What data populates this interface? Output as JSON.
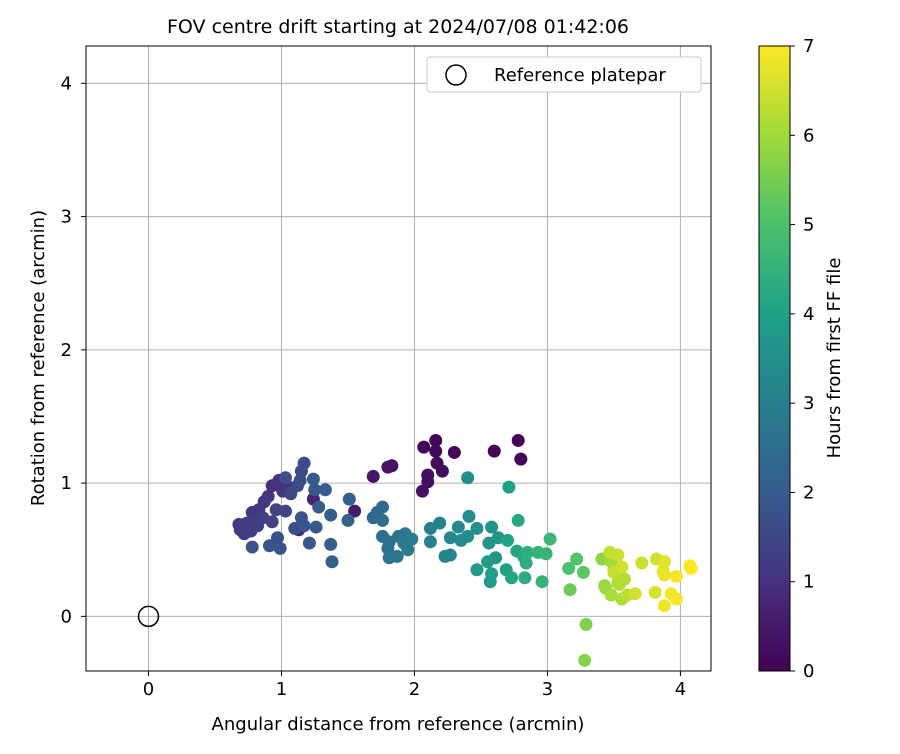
{
  "chart_data": {
    "type": "scatter",
    "title": "FOV centre drift starting at 2024/07/08 01:42:06",
    "xlabel": "Angular distance from reference (arcmin)",
    "ylabel": "Rotation from reference (arcmin)",
    "xlim": [
      -0.47,
      4.23
    ],
    "ylim": [
      -0.41,
      4.28
    ],
    "xticks": [
      0,
      1,
      2,
      3,
      4
    ],
    "yticks": [
      0,
      1,
      2,
      3,
      4
    ],
    "grid": true,
    "legend": {
      "placement": "top-right",
      "entries": [
        "Reference platepar"
      ]
    },
    "reference_point": {
      "x": 0,
      "y": 0,
      "label": "Reference platepar"
    },
    "colorbar": {
      "label": "Hours from first FF file",
      "colormap": "viridis",
      "range": [
        0,
        7
      ],
      "ticks": [
        0,
        1,
        2,
        3,
        4,
        5,
        6,
        7
      ],
      "stops": [
        "#440154",
        "#46327e",
        "#365c8d",
        "#277f8e",
        "#1fa187",
        "#4ac16d",
        "#a0da39",
        "#fde725"
      ]
    },
    "series": [
      {
        "color_by": "hours",
        "points": [
          {
            "x": 2.78,
            "y": 1.32,
            "h": 0.05
          },
          {
            "x": 2.8,
            "y": 1.18,
            "h": 0.06
          },
          {
            "x": 2.6,
            "y": 1.24,
            "h": 0.08
          },
          {
            "x": 2.16,
            "y": 1.32,
            "h": 0.1
          },
          {
            "x": 2.3,
            "y": 1.23,
            "h": 0.12
          },
          {
            "x": 2.07,
            "y": 1.27,
            "h": 0.15
          },
          {
            "x": 2.16,
            "y": 1.24,
            "h": 0.18
          },
          {
            "x": 2.17,
            "y": 1.15,
            "h": 0.2
          },
          {
            "x": 2.21,
            "y": 1.09,
            "h": 0.22
          },
          {
            "x": 2.1,
            "y": 1.06,
            "h": 0.25
          },
          {
            "x": 2.1,
            "y": 1.01,
            "h": 0.28
          },
          {
            "x": 2.06,
            "y": 0.94,
            "h": 0.3
          },
          {
            "x": 1.83,
            "y": 1.13,
            "h": 0.35
          },
          {
            "x": 1.8,
            "y": 1.12,
            "h": 0.38
          },
          {
            "x": 1.69,
            "y": 1.05,
            "h": 0.45
          },
          {
            "x": 1.55,
            "y": 0.79,
            "h": 0.55
          },
          {
            "x": 1.24,
            "y": 0.88,
            "h": 0.7
          },
          {
            "x": 1.13,
            "y": 0.65,
            "h": 0.8
          },
          {
            "x": 1.06,
            "y": 0.95,
            "h": 0.9
          },
          {
            "x": 1.03,
            "y": 1.0,
            "h": 0.95
          },
          {
            "x": 0.93,
            "y": 0.98,
            "h": 1.0
          },
          {
            "x": 0.98,
            "y": 1.02,
            "h": 1.02
          },
          {
            "x": 1.01,
            "y": 0.94,
            "h": 1.05
          },
          {
            "x": 0.9,
            "y": 0.9,
            "h": 1.08
          },
          {
            "x": 0.87,
            "y": 0.86,
            "h": 1.1
          },
          {
            "x": 0.83,
            "y": 0.8,
            "h": 1.12
          },
          {
            "x": 0.78,
            "y": 0.78,
            "h": 1.15
          },
          {
            "x": 0.8,
            "y": 0.72,
            "h": 1.18
          },
          {
            "x": 0.72,
            "y": 0.62,
            "h": 1.2
          },
          {
            "x": 0.68,
            "y": 0.69,
            "h": 1.22
          },
          {
            "x": 0.69,
            "y": 0.65,
            "h": 1.25
          },
          {
            "x": 0.74,
            "y": 0.7,
            "h": 1.28
          },
          {
            "x": 0.77,
            "y": 0.64,
            "h": 1.3
          },
          {
            "x": 0.82,
            "y": 0.68,
            "h": 1.32
          },
          {
            "x": 0.86,
            "y": 0.74,
            "h": 1.35
          },
          {
            "x": 0.93,
            "y": 0.71,
            "h": 1.38
          },
          {
            "x": 0.96,
            "y": 0.8,
            "h": 1.4
          },
          {
            "x": 1.03,
            "y": 0.79,
            "h": 1.45
          },
          {
            "x": 1.07,
            "y": 0.92,
            "h": 1.5
          },
          {
            "x": 1.12,
            "y": 0.98,
            "h": 1.55
          },
          {
            "x": 1.15,
            "y": 1.09,
            "h": 1.6
          },
          {
            "x": 1.17,
            "y": 1.15,
            "h": 1.62
          },
          {
            "x": 1.14,
            "y": 1.02,
            "h": 1.65
          },
          {
            "x": 1.03,
            "y": 1.04,
            "h": 1.68
          },
          {
            "x": 1.1,
            "y": 0.66,
            "h": 1.7
          },
          {
            "x": 0.97,
            "y": 0.59,
            "h": 1.72
          },
          {
            "x": 0.91,
            "y": 0.53,
            "h": 1.75
          },
          {
            "x": 0.78,
            "y": 0.52,
            "h": 1.78
          },
          {
            "x": 0.99,
            "y": 0.51,
            "h": 1.8
          },
          {
            "x": 1.15,
            "y": 0.74,
            "h": 1.82
          },
          {
            "x": 1.17,
            "y": 0.68,
            "h": 1.85
          },
          {
            "x": 1.21,
            "y": 0.55,
            "h": 1.88
          },
          {
            "x": 1.26,
            "y": 0.67,
            "h": 1.9
          },
          {
            "x": 1.28,
            "y": 0.82,
            "h": 1.92
          },
          {
            "x": 1.25,
            "y": 0.95,
            "h": 1.95
          },
          {
            "x": 1.24,
            "y": 1.03,
            "h": 1.98
          },
          {
            "x": 1.33,
            "y": 0.95,
            "h": 2.0
          },
          {
            "x": 1.37,
            "y": 0.76,
            "h": 2.05
          },
          {
            "x": 1.37,
            "y": 0.54,
            "h": 2.08
          },
          {
            "x": 1.38,
            "y": 0.41,
            "h": 2.12
          },
          {
            "x": 1.51,
            "y": 0.88,
            "h": 2.15
          },
          {
            "x": 1.5,
            "y": 0.72,
            "h": 2.2
          },
          {
            "x": 1.69,
            "y": 0.74,
            "h": 2.3
          },
          {
            "x": 1.72,
            "y": 0.78,
            "h": 2.35
          },
          {
            "x": 1.76,
            "y": 0.82,
            "h": 2.4
          },
          {
            "x": 1.76,
            "y": 0.72,
            "h": 2.45
          },
          {
            "x": 1.76,
            "y": 0.6,
            "h": 2.5
          },
          {
            "x": 1.81,
            "y": 0.56,
            "h": 2.55
          },
          {
            "x": 1.8,
            "y": 0.51,
            "h": 2.6
          },
          {
            "x": 1.81,
            "y": 0.44,
            "h": 2.65
          },
          {
            "x": 1.87,
            "y": 0.45,
            "h": 2.7
          },
          {
            "x": 1.88,
            "y": 0.6,
            "h": 2.75
          },
          {
            "x": 1.93,
            "y": 0.62,
            "h": 2.8
          },
          {
            "x": 1.92,
            "y": 0.55,
            "h": 2.85
          },
          {
            "x": 1.95,
            "y": 0.5,
            "h": 2.9
          },
          {
            "x": 1.98,
            "y": 0.58,
            "h": 2.95
          },
          {
            "x": 2.12,
            "y": 0.66,
            "h": 3.0
          },
          {
            "x": 2.12,
            "y": 0.56,
            "h": 3.05
          },
          {
            "x": 2.19,
            "y": 0.7,
            "h": 3.08
          },
          {
            "x": 2.23,
            "y": 0.45,
            "h": 3.1
          },
          {
            "x": 2.27,
            "y": 0.46,
            "h": 3.15
          },
          {
            "x": 2.27,
            "y": 0.59,
            "h": 3.2
          },
          {
            "x": 2.33,
            "y": 0.67,
            "h": 3.25
          },
          {
            "x": 2.35,
            "y": 0.57,
            "h": 3.3
          },
          {
            "x": 2.4,
            "y": 0.6,
            "h": 3.35
          },
          {
            "x": 2.41,
            "y": 0.75,
            "h": 3.4
          },
          {
            "x": 2.4,
            "y": 1.04,
            "h": 3.45
          },
          {
            "x": 2.47,
            "y": 0.66,
            "h": 3.5
          },
          {
            "x": 2.56,
            "y": 0.55,
            "h": 3.55
          },
          {
            "x": 2.58,
            "y": 0.67,
            "h": 3.6
          },
          {
            "x": 2.61,
            "y": 0.44,
            "h": 3.65
          },
          {
            "x": 2.63,
            "y": 0.59,
            "h": 3.7
          },
          {
            "x": 2.47,
            "y": 0.35,
            "h": 3.75
          },
          {
            "x": 2.55,
            "y": 0.41,
            "h": 3.8
          },
          {
            "x": 2.57,
            "y": 0.26,
            "h": 3.85
          },
          {
            "x": 2.58,
            "y": 0.32,
            "h": 3.9
          },
          {
            "x": 2.69,
            "y": 0.35,
            "h": 3.95
          },
          {
            "x": 2.71,
            "y": 0.97,
            "h": 4.0
          },
          {
            "x": 2.7,
            "y": 0.57,
            "h": 4.05
          },
          {
            "x": 2.73,
            "y": 0.29,
            "h": 4.1
          },
          {
            "x": 2.77,
            "y": 0.49,
            "h": 4.15
          },
          {
            "x": 2.78,
            "y": 0.72,
            "h": 4.2
          },
          {
            "x": 2.82,
            "y": 0.45,
            "h": 4.25
          },
          {
            "x": 2.83,
            "y": 0.29,
            "h": 4.3
          },
          {
            "x": 2.84,
            "y": 0.4,
            "h": 4.35
          },
          {
            "x": 2.85,
            "y": 0.48,
            "h": 4.4
          },
          {
            "x": 2.93,
            "y": 0.48,
            "h": 4.5
          },
          {
            "x": 2.96,
            "y": 0.26,
            "h": 4.55
          },
          {
            "x": 2.99,
            "y": 0.47,
            "h": 4.6
          },
          {
            "x": 3.02,
            "y": 0.58,
            "h": 4.65
          },
          {
            "x": 3.16,
            "y": 0.36,
            "h": 5.0
          },
          {
            "x": 3.22,
            "y": 0.43,
            "h": 5.1
          },
          {
            "x": 3.27,
            "y": 0.33,
            "h": 5.2
          },
          {
            "x": 3.17,
            "y": 0.2,
            "h": 5.4
          },
          {
            "x": 3.29,
            "y": -0.06,
            "h": 5.6
          },
          {
            "x": 3.28,
            "y": -0.33,
            "h": 5.7
          },
          {
            "x": 3.41,
            "y": 0.43,
            "h": 5.8
          },
          {
            "x": 3.43,
            "y": 0.23,
            "h": 5.9
          },
          {
            "x": 3.44,
            "y": 0.21,
            "h": 5.95
          },
          {
            "x": 3.48,
            "y": 0.41,
            "h": 6.0
          },
          {
            "x": 3.5,
            "y": 0.35,
            "h": 6.05
          },
          {
            "x": 3.53,
            "y": 0.25,
            "h": 6.1
          },
          {
            "x": 3.56,
            "y": 0.13,
            "h": 6.15
          },
          {
            "x": 3.58,
            "y": 0.28,
            "h": 6.2
          },
          {
            "x": 3.6,
            "y": 0.16,
            "h": 6.3
          },
          {
            "x": 3.47,
            "y": 0.48,
            "h": 6.35
          },
          {
            "x": 3.5,
            "y": 0.33,
            "h": 6.4
          },
          {
            "x": 3.53,
            "y": 0.46,
            "h": 6.45
          },
          {
            "x": 3.56,
            "y": 0.37,
            "h": 6.5
          },
          {
            "x": 3.66,
            "y": 0.17,
            "h": 6.55
          },
          {
            "x": 3.71,
            "y": 0.4,
            "h": 6.45
          },
          {
            "x": 3.82,
            "y": 0.43,
            "h": 6.5
          },
          {
            "x": 3.81,
            "y": 0.18,
            "h": 6.6
          },
          {
            "x": 3.88,
            "y": 0.41,
            "h": 6.7
          },
          {
            "x": 3.87,
            "y": 0.34,
            "h": 6.75
          },
          {
            "x": 3.88,
            "y": 0.31,
            "h": 6.8
          },
          {
            "x": 3.88,
            "y": 0.08,
            "h": 6.85
          },
          {
            "x": 3.93,
            "y": 0.17,
            "h": 6.9
          },
          {
            "x": 3.97,
            "y": 0.13,
            "h": 6.95
          },
          {
            "x": 3.97,
            "y": 0.3,
            "h": 6.95
          },
          {
            "x": 4.07,
            "y": 0.38,
            "h": 7.0
          },
          {
            "x": 4.08,
            "y": 0.36,
            "h": 7.0
          },
          {
            "x": 3.54,
            "y": 0.24,
            "h": 6.2
          },
          {
            "x": 3.48,
            "y": 0.16,
            "h": 6.1
          }
        ]
      }
    ]
  }
}
